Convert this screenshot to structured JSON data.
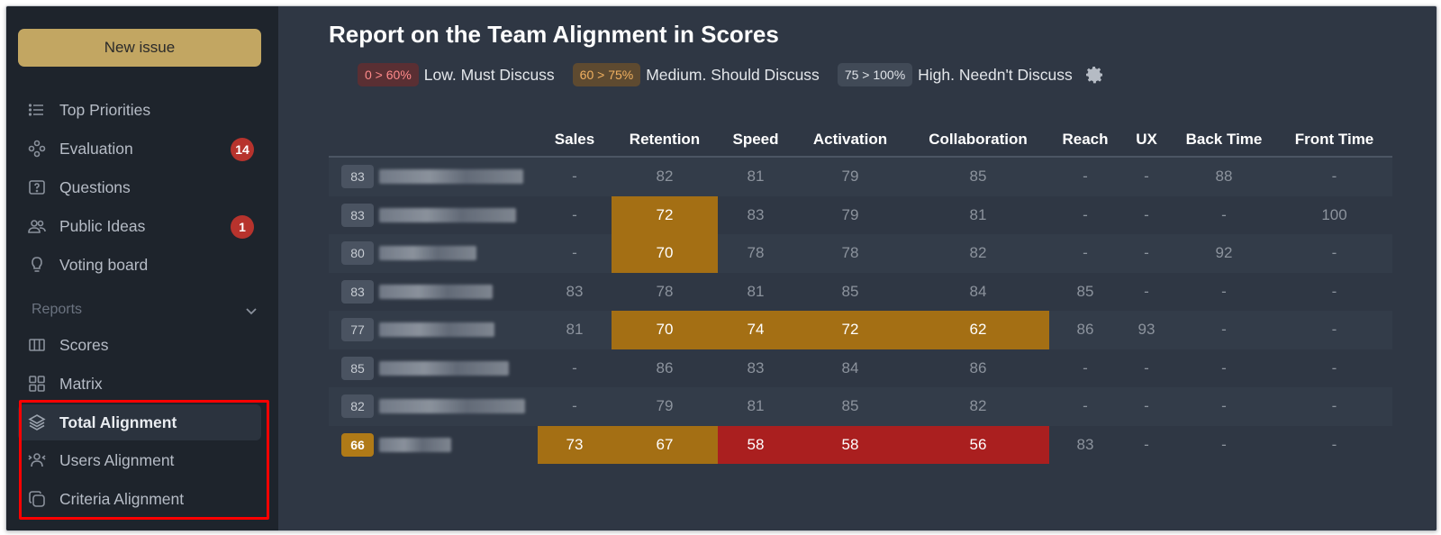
{
  "sidebar": {
    "new_issue_label": "New issue",
    "items": [
      {
        "label": "Top Priorities",
        "icon": "list-icon",
        "badge": null
      },
      {
        "label": "Evaluation",
        "icon": "nodes-icon",
        "badge": "14"
      },
      {
        "label": "Questions",
        "icon": "question-box-icon",
        "badge": null
      },
      {
        "label": "Public Ideas",
        "icon": "users-icon",
        "badge": "1"
      },
      {
        "label": "Voting board",
        "icon": "lightbulb-icon",
        "badge": null
      }
    ],
    "reports_label": "Reports",
    "report_items": [
      {
        "label": "Scores",
        "icon": "columns-icon"
      },
      {
        "label": "Matrix",
        "icon": "grid-icon"
      },
      {
        "label": "Total Alignment",
        "icon": "layers-icon",
        "active": true
      },
      {
        "label": "Users Alignment",
        "icon": "user-arrows-icon"
      },
      {
        "label": "Criteria Alignment",
        "icon": "copy-icon"
      }
    ]
  },
  "main": {
    "title": "Report on the Team Alignment in Scores",
    "legend": [
      {
        "range": "0 > 60%",
        "text": "Low. Must Discuss",
        "level": "low"
      },
      {
        "range": "60 > 75%",
        "text": "Medium. Should Discuss",
        "level": "med"
      },
      {
        "range": "75 > 100%",
        "text": "High. Needn't Discuss",
        "level": "high"
      }
    ],
    "columns": [
      "Sales",
      "Retention",
      "Speed",
      "Activation",
      "Collaboration",
      "Reach",
      "UX",
      "Back Time",
      "Front Time"
    ],
    "rows": [
      {
        "score": "83",
        "cells": [
          "-",
          "82",
          "81",
          "79",
          "85",
          "-",
          "-",
          "88",
          "-"
        ]
      },
      {
        "score": "83",
        "cells": [
          "-",
          "72",
          "83",
          "79",
          "81",
          "-",
          "-",
          "-",
          "100"
        ]
      },
      {
        "score": "80",
        "cells": [
          "-",
          "70",
          "78",
          "78",
          "82",
          "-",
          "-",
          "92",
          "-"
        ]
      },
      {
        "score": "83",
        "cells": [
          "83",
          "78",
          "81",
          "85",
          "84",
          "85",
          "-",
          "-",
          "-"
        ]
      },
      {
        "score": "77",
        "cells": [
          "81",
          "70",
          "74",
          "72",
          "62",
          "86",
          "93",
          "-",
          "-"
        ]
      },
      {
        "score": "85",
        "cells": [
          "-",
          "86",
          "83",
          "84",
          "86",
          "-",
          "-",
          "-",
          "-"
        ]
      },
      {
        "score": "82",
        "cells": [
          "-",
          "79",
          "81",
          "85",
          "82",
          "-",
          "-",
          "-",
          "-"
        ]
      },
      {
        "score": "66",
        "cells": [
          "73",
          "67",
          "58",
          "58",
          "56",
          "83",
          "-",
          "-",
          "-"
        ]
      }
    ],
    "colors": {
      "medium": "#a46f14",
      "low": "#aa1f1f",
      "highlight_box": "#ff0000"
    }
  }
}
